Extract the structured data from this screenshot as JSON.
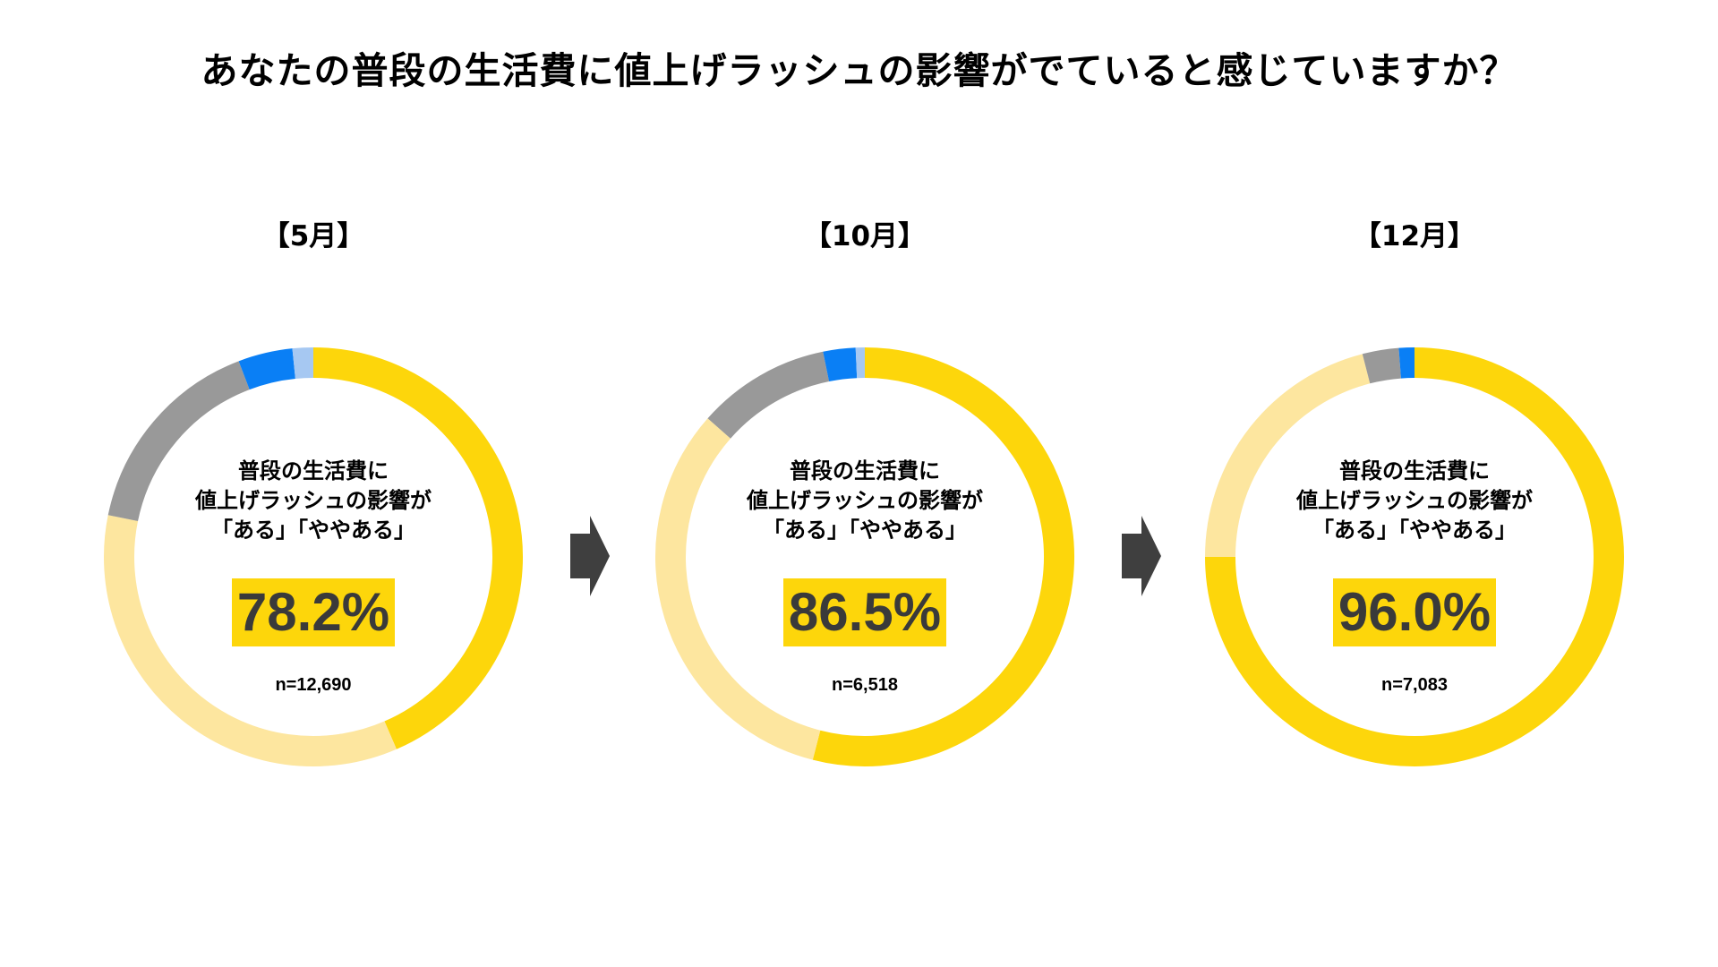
{
  "title": "あなたの普段の生活費に値上げラッシュの影響がでていると感じていますか？",
  "colors": {
    "aru": "#fdd60b",
    "yaya_aru": "#fde69f",
    "amari_nai": "#999999",
    "nai": "#0a7ff5",
    "other": "#a6c8f2",
    "arrow": "#3f3f3f",
    "highlight": "#fdd60b"
  },
  "center_text": [
    "普段の生活費に",
    "値上げラッシュの影響が",
    "「ある」「ややある」"
  ],
  "chart_data": [
    {
      "type": "pie",
      "donut": true,
      "title": "【5月】",
      "highlight": "78.2%",
      "n_label": "n=12,690",
      "slices": [
        {
          "color_key": "aru",
          "value": 43.5
        },
        {
          "color_key": "yaya_aru",
          "value": 34.7
        },
        {
          "color_key": "amari_nai",
          "value": 16.0
        },
        {
          "color_key": "nai",
          "value": 4.2
        },
        {
          "color_key": "other",
          "value": 1.6
        }
      ]
    },
    {
      "type": "pie",
      "donut": true,
      "title": "【10月】",
      "highlight": "86.5%",
      "n_label": "n=6,518",
      "slices": [
        {
          "color_key": "aru",
          "value": 54.0
        },
        {
          "color_key": "yaya_aru",
          "value": 32.5
        },
        {
          "color_key": "amari_nai",
          "value": 10.3
        },
        {
          "color_key": "nai",
          "value": 2.5
        },
        {
          "color_key": "other",
          "value": 0.7
        }
      ]
    },
    {
      "type": "pie",
      "donut": true,
      "title": "【12月】",
      "highlight": "96.0%",
      "n_label": "n=7,083",
      "slices": [
        {
          "color_key": "aru",
          "value": 75.0
        },
        {
          "color_key": "yaya_aru",
          "value": 21.0
        },
        {
          "color_key": "amari_nai",
          "value": 2.8
        },
        {
          "color_key": "nai",
          "value": 1.2
        }
      ]
    }
  ]
}
